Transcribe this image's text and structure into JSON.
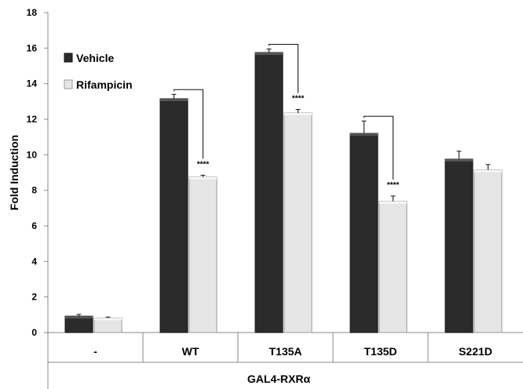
{
  "chart_data": {
    "type": "bar",
    "xlabel": "GAL4-RXRα",
    "ylabel": "Fold Induction",
    "ylim": [
      0,
      18
    ],
    "yticks": [
      0,
      2,
      4,
      6,
      8,
      10,
      12,
      14,
      16,
      18
    ],
    "grid": false,
    "legend_position": "top-left",
    "categories": [
      "-",
      "WT",
      "T135A",
      "T135D",
      "S221D"
    ],
    "series": [
      {
        "name": "Vehicle",
        "color": "#2b2b2b",
        "values": [
          0.92,
          13.15,
          15.75,
          11.2,
          9.75
        ],
        "errors": [
          0.1,
          0.25,
          0.2,
          0.7,
          0.45
        ]
      },
      {
        "name": "Rifampicin",
        "color": "#e6e6e6",
        "values": [
          0.82,
          8.75,
          12.35,
          7.38,
          9.15
        ],
        "errors": [
          0.05,
          0.1,
          0.2,
          0.3,
          0.3
        ]
      }
    ],
    "annotations": [
      {
        "category": "WT",
        "text": "****"
      },
      {
        "category": "T135A",
        "text": "****"
      },
      {
        "category": "T135D",
        "text": "****"
      }
    ]
  }
}
